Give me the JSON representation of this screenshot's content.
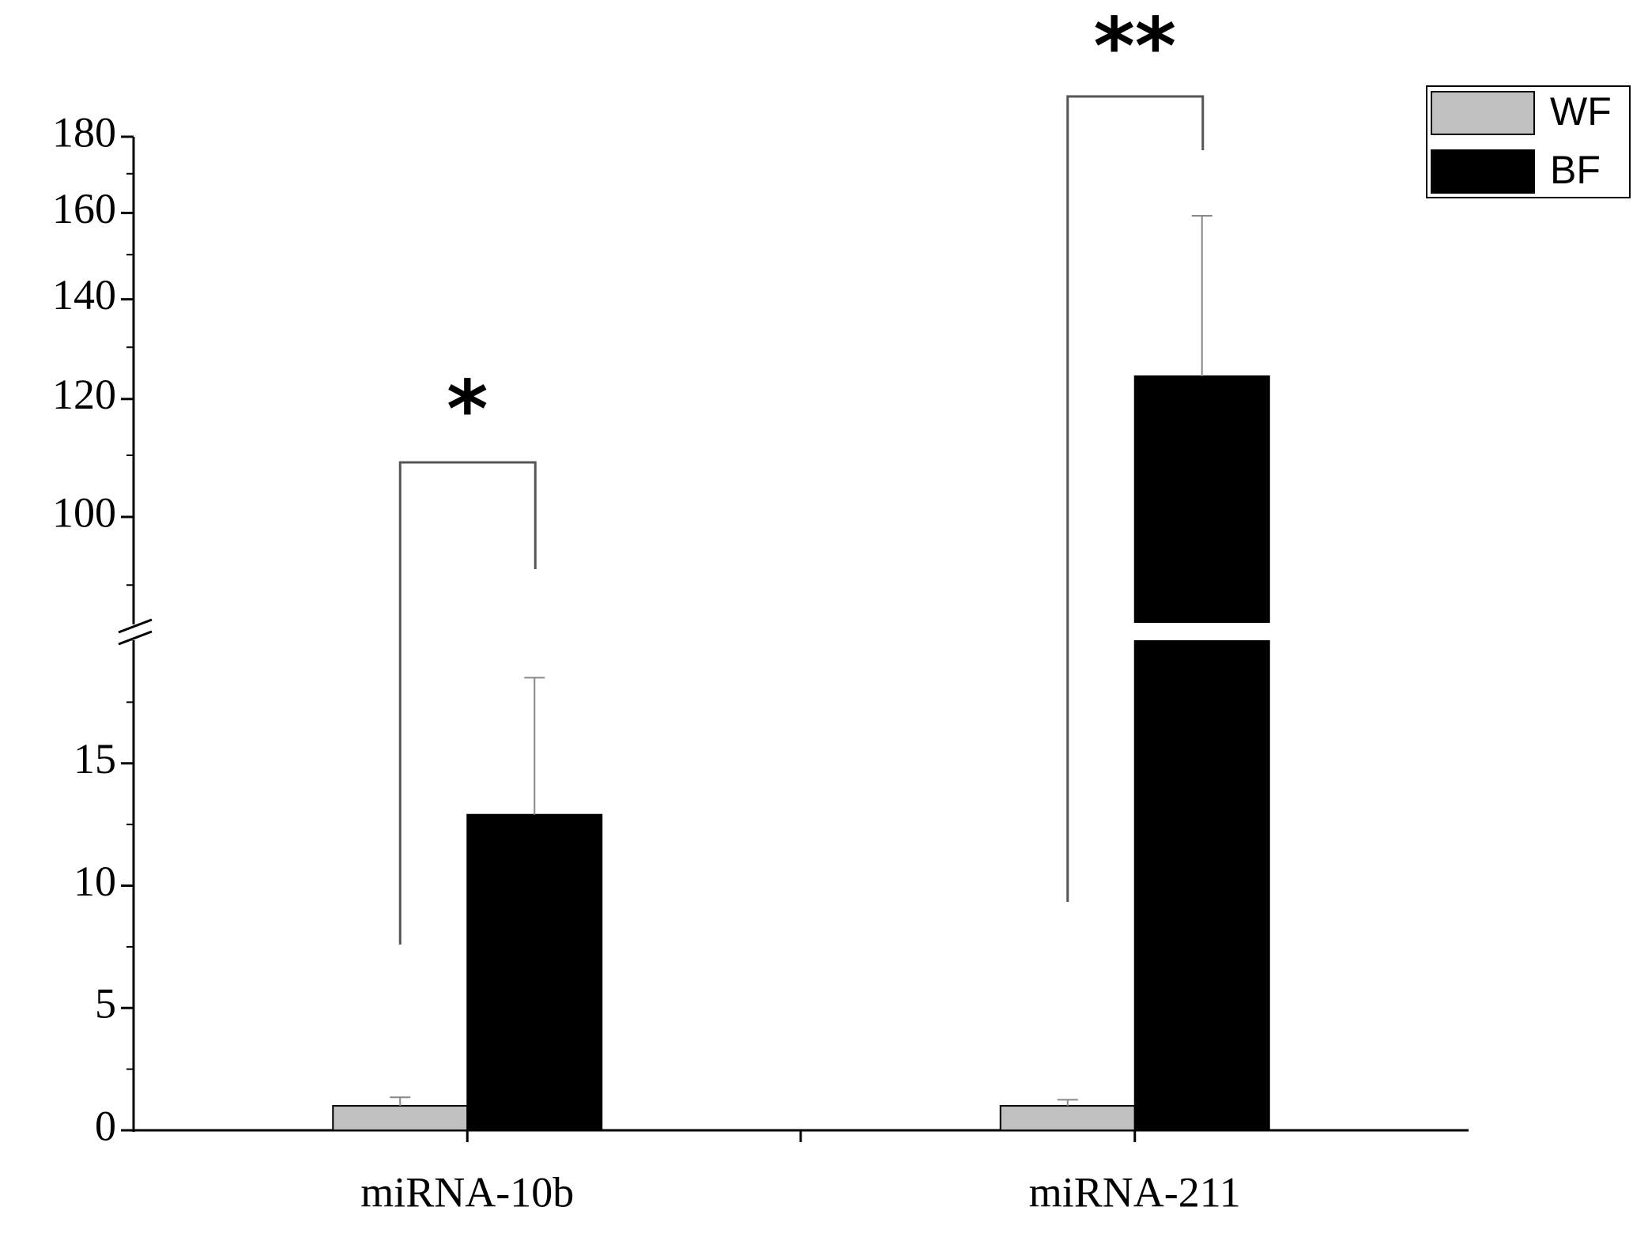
{
  "chart_data": {
    "type": "bar",
    "categories": [
      "miRNA-10b",
      "miRNA-211"
    ],
    "series": [
      {
        "name": "WF",
        "color": "#c0c0c0",
        "values": [
          1,
          1
        ],
        "errors": [
          0.35,
          0.25
        ]
      },
      {
        "name": "BF",
        "color": "#000000",
        "values": [
          12.9,
          124.3
        ],
        "errors": [
          5.6,
          35
        ]
      }
    ],
    "ylim": [
      0,
      180
    ],
    "ybreak": [
      20,
      85
    ],
    "upper_log_scale": true,
    "yticks": [
      0,
      5,
      10,
      15,
      100,
      120,
      140,
      160,
      180
    ],
    "yminorticks": [
      2.5,
      7.5,
      12.5,
      17.5,
      90,
      110,
      130,
      150,
      170
    ],
    "annotations": [
      "*",
      "**"
    ],
    "legend": "upper right"
  }
}
